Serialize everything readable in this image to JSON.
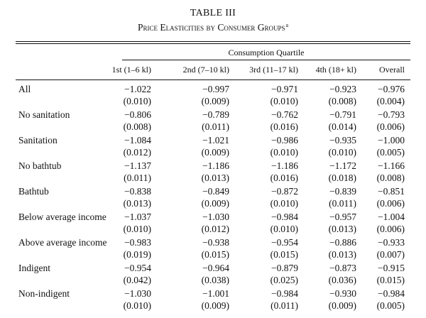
{
  "table": {
    "number": "TABLE III",
    "caption": "Price Elasticities by Consumer Groups",
    "footnote_marker": "a",
    "spanner": "Consumption Quartile",
    "columns": [
      "1st (1–6 kl)",
      "2nd (7–10 kl)",
      "3rd (11–17 kl)",
      "4th (18+ kl)",
      "Overall"
    ],
    "rows": [
      {
        "label": "All",
        "cells": [
          [
            "−1.022",
            "(0.010)"
          ],
          [
            "−0.997",
            "(0.009)"
          ],
          [
            "−0.971",
            "(0.010)"
          ],
          [
            "−0.923",
            "(0.008)"
          ],
          [
            "−0.976",
            "(0.004)"
          ]
        ]
      },
      {
        "label": "No sanitation",
        "cells": [
          [
            "−0.806",
            "(0.008)"
          ],
          [
            "−0.789",
            "(0.011)"
          ],
          [
            "−0.762",
            "(0.016)"
          ],
          [
            "−0.791",
            "(0.014)"
          ],
          [
            "−0.793",
            "(0.006)"
          ]
        ]
      },
      {
        "label": "Sanitation",
        "cells": [
          [
            "−1.084",
            "(0.012)"
          ],
          [
            "−1.021",
            "(0.009)"
          ],
          [
            "−0.986",
            "(0.010)"
          ],
          [
            "−0.935",
            "(0.010)"
          ],
          [
            "−1.000",
            "(0.005)"
          ]
        ]
      },
      {
        "label": "No bathtub",
        "cells": [
          [
            "−1.137",
            "(0.011)"
          ],
          [
            "−1.186",
            "(0.013)"
          ],
          [
            "−1.186",
            "(0.016)"
          ],
          [
            "−1.172",
            "(0.018)"
          ],
          [
            "−1.166",
            "(0.008)"
          ]
        ]
      },
      {
        "label": "Bathtub",
        "cells": [
          [
            "−0.838",
            "(0.013)"
          ],
          [
            "−0.849",
            "(0.009)"
          ],
          [
            "−0.872",
            "(0.010)"
          ],
          [
            "−0.839",
            "(0.011)"
          ],
          [
            "−0.851",
            "(0.006)"
          ]
        ]
      },
      {
        "label": "Below average income",
        "cells": [
          [
            "−1.037",
            "(0.010)"
          ],
          [
            "−1.030",
            "(0.012)"
          ],
          [
            "−0.984",
            "(0.010)"
          ],
          [
            "−0.957",
            "(0.013)"
          ],
          [
            "−1.004",
            "(0.006)"
          ]
        ]
      },
      {
        "label": "Above average income",
        "cells": [
          [
            "−0.983",
            "(0.019)"
          ],
          [
            "−0.938",
            "(0.015)"
          ],
          [
            "−0.954",
            "(0.015)"
          ],
          [
            "−0.886",
            "(0.013)"
          ],
          [
            "−0.933",
            "(0.007)"
          ]
        ]
      },
      {
        "label": "Indigent",
        "cells": [
          [
            "−0.954",
            "(0.042)"
          ],
          [
            "−0.964",
            "(0.038)"
          ],
          [
            "−0.879",
            "(0.025)"
          ],
          [
            "−0.873",
            "(0.036)"
          ],
          [
            "−0.915",
            "(0.015)"
          ]
        ]
      },
      {
        "label": "Non-indigent",
        "cells": [
          [
            "−1.030",
            "(0.010)"
          ],
          [
            "−1.001",
            "(0.009)"
          ],
          [
            "−0.984",
            "(0.011)"
          ],
          [
            "−0.930",
            "(0.009)"
          ],
          [
            "−0.984",
            "(0.005)"
          ]
        ]
      }
    ]
  }
}
